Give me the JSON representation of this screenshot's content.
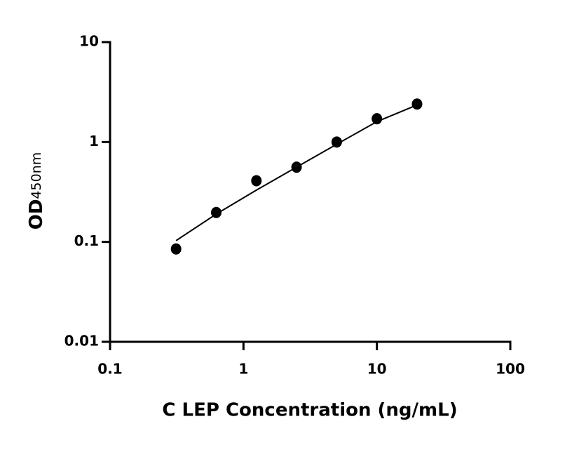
{
  "chart_data": {
    "type": "scatter",
    "x_label": "C LEP Concentration (ng/mL)",
    "y_label": "OD",
    "y_label_subscript": "450nm",
    "x": [
      0.3125,
      0.625,
      1.25,
      2.5,
      5,
      10,
      20
    ],
    "series": [
      {
        "color": "#000000",
        "values": [
          0.085,
          0.197,
          0.41,
          0.56,
          1.0,
          1.71,
          2.4
        ]
      }
    ],
    "fit": {
      "color": "#000000",
      "x": [
        0.3125,
        0.625,
        1.25,
        2.5,
        5,
        10,
        20
      ],
      "values": [
        0.103,
        0.19,
        0.33,
        0.56,
        0.95,
        1.6,
        2.35
      ]
    },
    "xlim": [
      0.1,
      100
    ],
    "ylim": [
      0.01,
      10
    ],
    "xticks": [
      0.1,
      1,
      10,
      100
    ],
    "yticks": [
      0.01,
      0.1,
      1,
      10
    ],
    "xscale": "log",
    "yscale": "log",
    "grid": false
  }
}
